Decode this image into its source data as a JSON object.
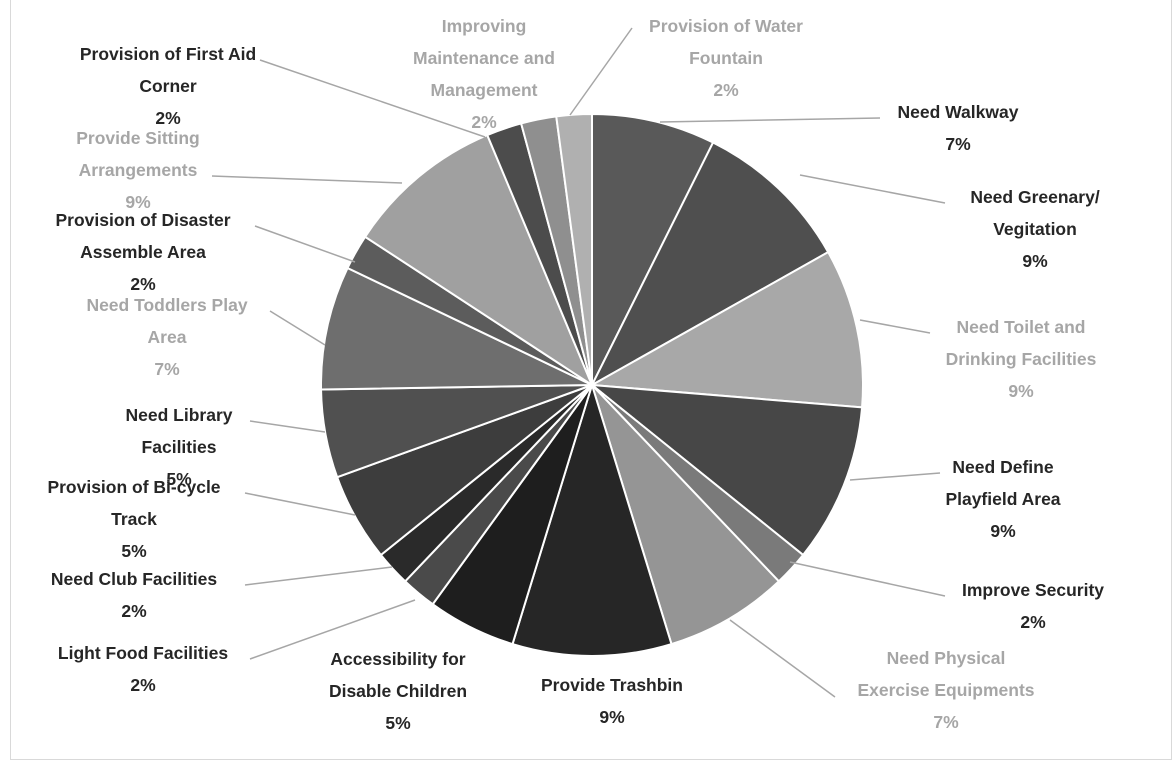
{
  "chart_data": {
    "type": "pie",
    "slices": [
      {
        "name": "Need Walkway",
        "value": 7,
        "label": "7%",
        "color": "#595959"
      },
      {
        "name": "Need Greenary/ Vegitation",
        "value": 9,
        "label": "9%",
        "color": "#4f4f4f"
      },
      {
        "name": "Need Toilet and Drinking Facilities",
        "value": 9,
        "label": "9%",
        "color": "#a8a8a8"
      },
      {
        "name": "Need Define Playfield Area",
        "value": 9,
        "label": "9%",
        "color": "#474747"
      },
      {
        "name": "Improve Security",
        "value": 2,
        "label": "2%",
        "color": "#7a7a7a"
      },
      {
        "name": "Need Physical Exercise Equipments",
        "value": 7,
        "label": "7%",
        "color": "#959595"
      },
      {
        "name": "Provide Trashbin",
        "value": 9,
        "label": "9%",
        "color": "#262626"
      },
      {
        "name": "Accessibility for Disable Children",
        "value": 5,
        "label": "5%",
        "color": "#1e1e1e"
      },
      {
        "name": "Light Food Facilities",
        "value": 2,
        "label": "2%",
        "color": "#4a4a4a"
      },
      {
        "name": "Need Club Facilities",
        "value": 2,
        "label": "2%",
        "color": "#2a2a2a"
      },
      {
        "name": "Provision of Bi-cycle Track",
        "value": 5,
        "label": "5%",
        "color": "#3d3d3d"
      },
      {
        "name": "Need Library Facilities",
        "value": 5,
        "label": "5%",
        "color": "#505050"
      },
      {
        "name": "Need Toddlers Play Area",
        "value": 7,
        "label": "7%",
        "color": "#6e6e6e"
      },
      {
        "name": "Provision of Disaster Assemble Area",
        "value": 2,
        "label": "2%",
        "color": "#5c5c5c"
      },
      {
        "name": "Provide Sitting Arrangements",
        "value": 9,
        "label": "9%",
        "color": "#a0a0a0"
      },
      {
        "name": "Provision of First Aid Corner",
        "value": 2,
        "label": "2%",
        "color": "#4c4c4c"
      },
      {
        "name": "Improving Maintenance and Management",
        "value": 2,
        "label": "2%",
        "color": "#8f8f8f"
      },
      {
        "name": "Provision of Water Fountain",
        "value": 2,
        "label": "2%",
        "color": "#b0b0b0"
      }
    ],
    "label_colors": {
      "dark": "#262626",
      "light": "#a6a6a6"
    },
    "title": "",
    "legend": "none",
    "grid": false
  }
}
